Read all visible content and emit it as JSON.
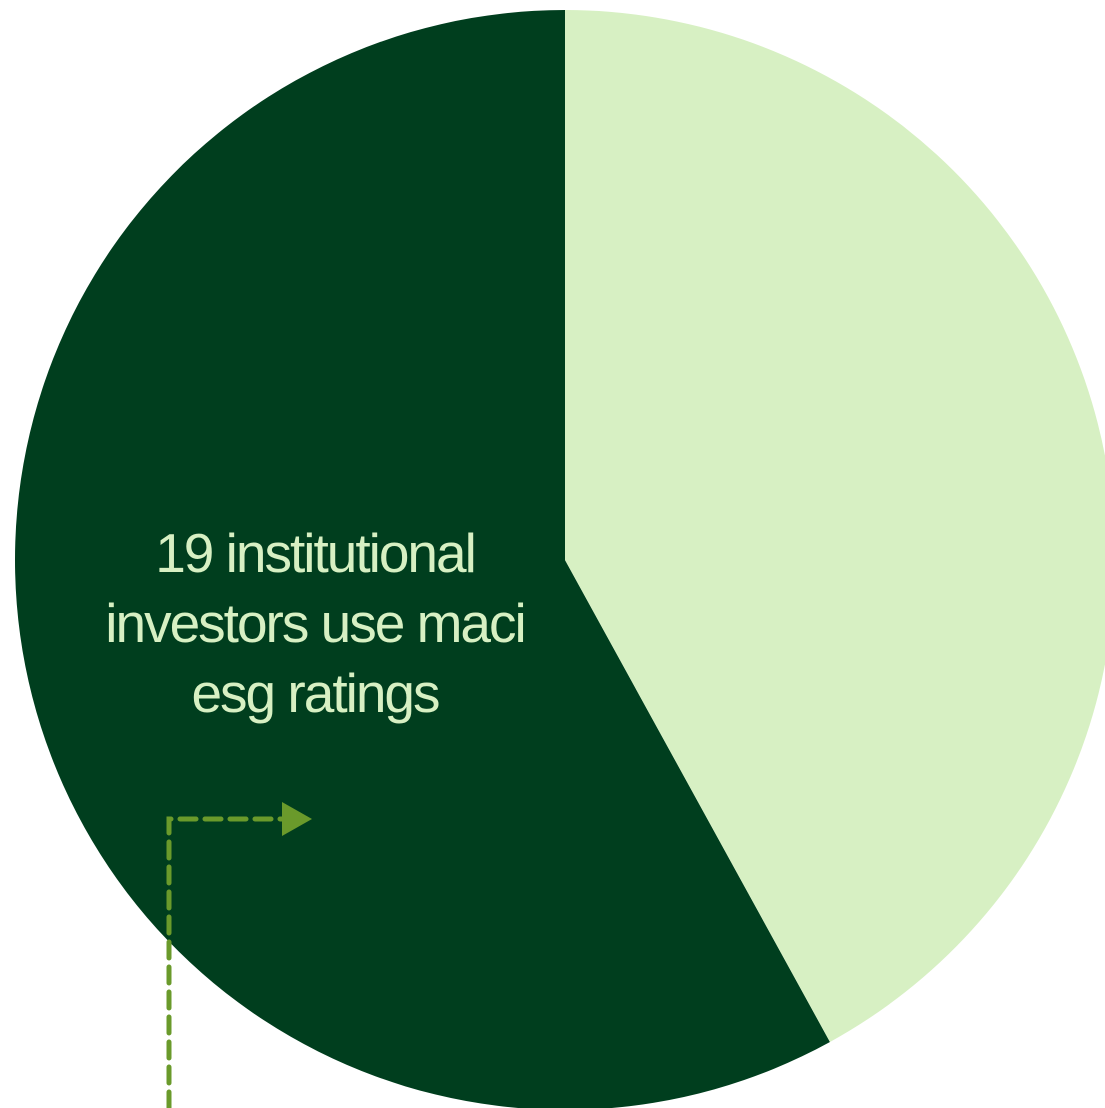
{
  "colors": {
    "background": "#ffffff",
    "text": "#d7f0c3",
    "connector": "#6a9a2b"
  },
  "chart_data": {
    "type": "pie",
    "title": "",
    "start_angle_deg": 0,
    "direction": "counterclockwise",
    "slices": [
      {
        "label": "19 institutional investors use maci esg ratings",
        "value": 58,
        "color": "#003e1e"
      },
      {
        "label": "",
        "value": 42,
        "color": "#d7f0c3"
      }
    ],
    "annotations": [
      {
        "text": "19 institutional investors use maci esg ratings",
        "slice": 0,
        "connector": "dashed arrow"
      }
    ],
    "legend": "none"
  }
}
